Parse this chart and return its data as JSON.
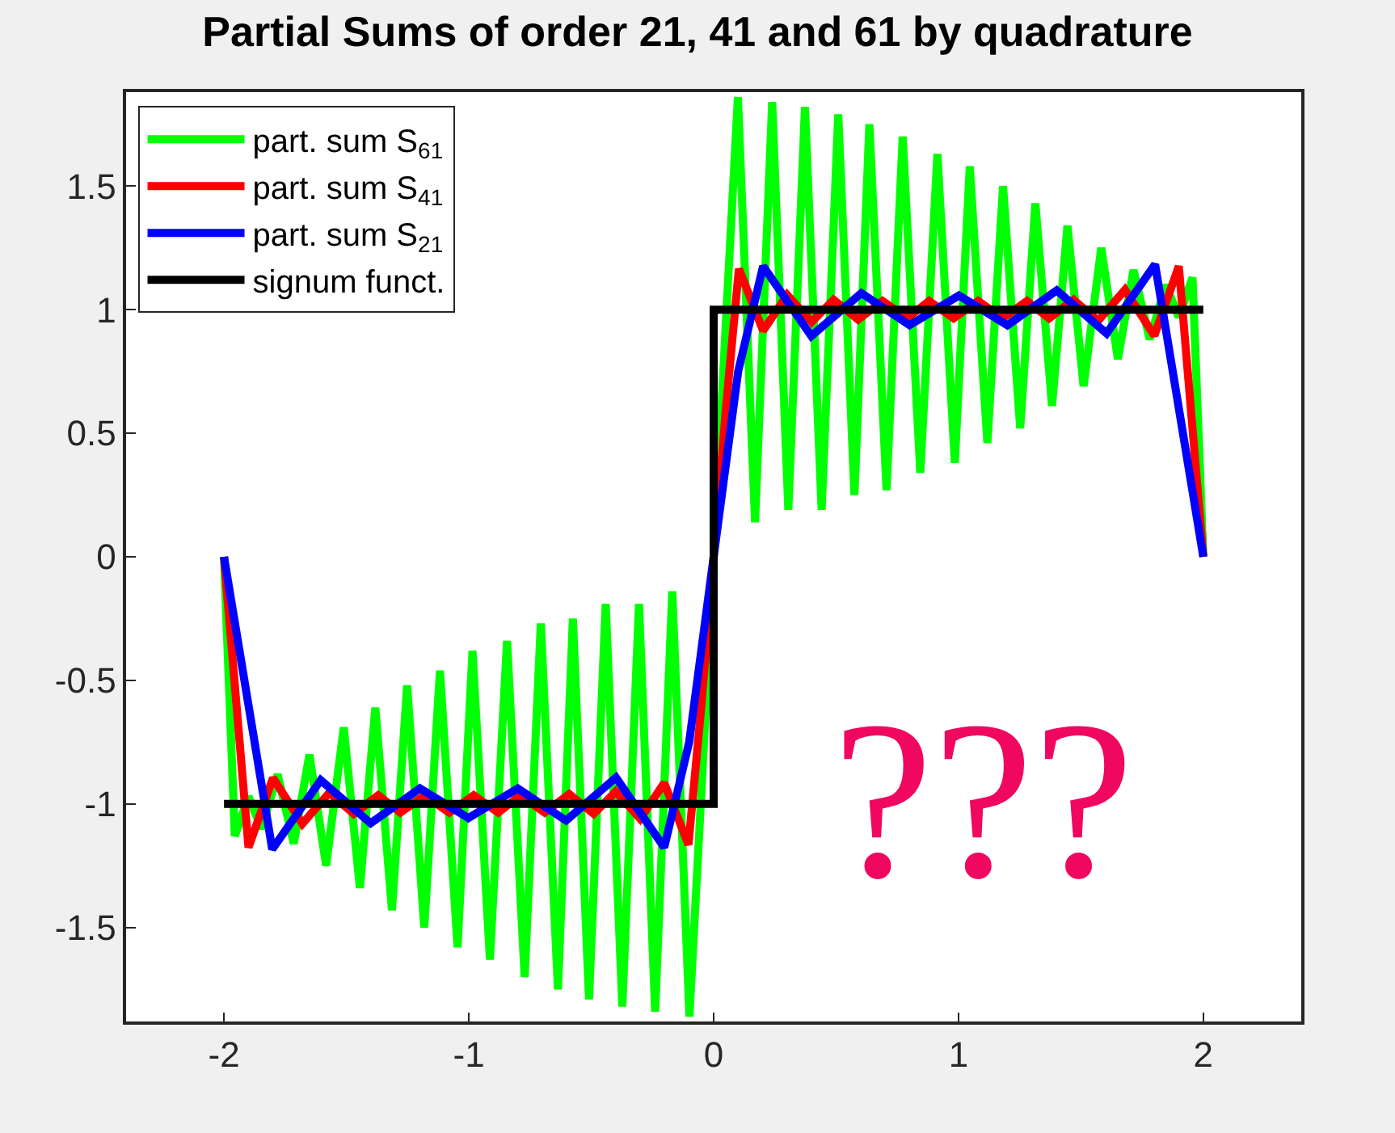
{
  "chart_data": {
    "type": "line",
    "title": "Partial Sums of order 21, 41 and 61 by quadrature",
    "series": [
      {
        "name": "part. sum S$_{61}$",
        "color": "#00ff00",
        "x": [
          -2.0,
          -1.956,
          -1.9,
          -1.847,
          -1.781,
          -1.715,
          -1.651,
          -1.583,
          -1.511,
          -1.445,
          -1.382,
          -1.314,
          -1.252,
          -1.182,
          -1.118,
          -1.046,
          -0.985,
          -0.914,
          -0.844,
          -0.772,
          -0.706,
          -0.636,
          -0.575,
          -0.509,
          -0.441,
          -0.373,
          -0.305,
          -0.239,
          -0.169,
          -0.099,
          -0.05,
          0,
          0.05,
          0.099,
          0.169,
          0.239,
          0.305,
          0.373,
          0.441,
          0.509,
          0.575,
          0.636,
          0.706,
          0.772,
          0.844,
          0.914,
          0.985,
          1.046,
          1.118,
          1.182,
          1.252,
          1.314,
          1.382,
          1.445,
          1.511,
          1.583,
          1.651,
          1.715,
          1.781,
          1.847,
          1.9,
          1.956,
          2.0
        ],
        "values": [
          0,
          -1.13,
          -0.97,
          -1.1,
          -0.88,
          -1.16,
          -0.8,
          -1.25,
          -0.69,
          -1.34,
          -0.61,
          -1.43,
          -0.52,
          -1.5,
          -0.46,
          -1.58,
          -0.38,
          -1.63,
          -0.34,
          -1.7,
          -0.27,
          -1.75,
          -0.25,
          -1.79,
          -0.19,
          -1.82,
          -0.19,
          -1.84,
          -0.14,
          -1.86,
          -0.95,
          0,
          0.95,
          1.86,
          0.14,
          1.84,
          0.19,
          1.82,
          0.19,
          1.79,
          0.25,
          1.75,
          0.27,
          1.7,
          0.34,
          1.63,
          0.38,
          1.58,
          0.46,
          1.5,
          0.52,
          1.43,
          0.61,
          1.34,
          0.69,
          1.25,
          0.8,
          1.16,
          0.88,
          1.1,
          0.97,
          1.13,
          0
        ]
      },
      {
        "name": "part. sum S$_{41}$",
        "color": "#ff0000",
        "x": [
          -2.0,
          -1.9,
          -1.8,
          -1.68,
          -1.57,
          -1.47,
          -1.37,
          -1.28,
          -1.18,
          -1.08,
          -0.98,
          -0.88,
          -0.79,
          -0.69,
          -0.59,
          -0.49,
          -0.4,
          -0.3,
          -0.202,
          -0.103,
          -0.05,
          0,
          0.05,
          0.103,
          0.202,
          0.3,
          0.4,
          0.49,
          0.59,
          0.69,
          0.79,
          0.88,
          0.98,
          1.08,
          1.18,
          1.28,
          1.37,
          1.47,
          1.57,
          1.68,
          1.8,
          1.9,
          2.0
        ],
        "values": [
          0,
          -1.176,
          -0.895,
          -1.08,
          -0.955,
          -1.04,
          -0.965,
          -1.035,
          -0.965,
          -1.035,
          -0.965,
          -1.035,
          -0.965,
          -1.035,
          -0.96,
          -1.04,
          -0.95,
          -1.06,
          -0.915,
          -1.165,
          -0.6,
          0,
          0.6,
          1.165,
          0.915,
          1.06,
          0.95,
          1.04,
          0.96,
          1.035,
          0.965,
          1.035,
          0.965,
          1.035,
          0.965,
          1.035,
          0.965,
          1.04,
          0.955,
          1.08,
          0.895,
          1.176,
          0
        ]
      },
      {
        "name": "part. sum S$_{21}$",
        "color": "#0000ff",
        "x": [
          -2.0,
          -1.803,
          -1.605,
          -1.401,
          -1.2,
          -1.002,
          -0.8,
          -0.603,
          -0.399,
          -0.202,
          -0.1,
          0,
          0.1,
          0.202,
          0.399,
          0.603,
          0.8,
          1.002,
          1.2,
          1.401,
          1.605,
          1.803,
          2.0
        ],
        "values": [
          0,
          -1.183,
          -0.904,
          -1.078,
          -0.937,
          -1.057,
          -0.937,
          -1.067,
          -0.893,
          -1.176,
          -0.75,
          0,
          0.75,
          1.176,
          0.893,
          1.067,
          0.937,
          1.057,
          0.937,
          1.078,
          0.904,
          1.183,
          0
        ]
      },
      {
        "name": "signum funct.",
        "color": "#000000",
        "x": [
          -2,
          0,
          0,
          2
        ],
        "values": [
          -1,
          -1,
          1,
          1
        ]
      }
    ],
    "xlim": [
      -2.4,
      2.4
    ],
    "xticks": [
      -2,
      -1,
      0,
      1,
      2
    ],
    "ylim": [
      -1.88,
      1.88
    ],
    "yticks": [
      -1.5,
      -1,
      -0.5,
      0,
      0.5,
      1,
      1.5
    ],
    "legend": "top left",
    "marker": "none",
    "line_style": "solid",
    "annotations": [
      "???"
    ]
  }
}
